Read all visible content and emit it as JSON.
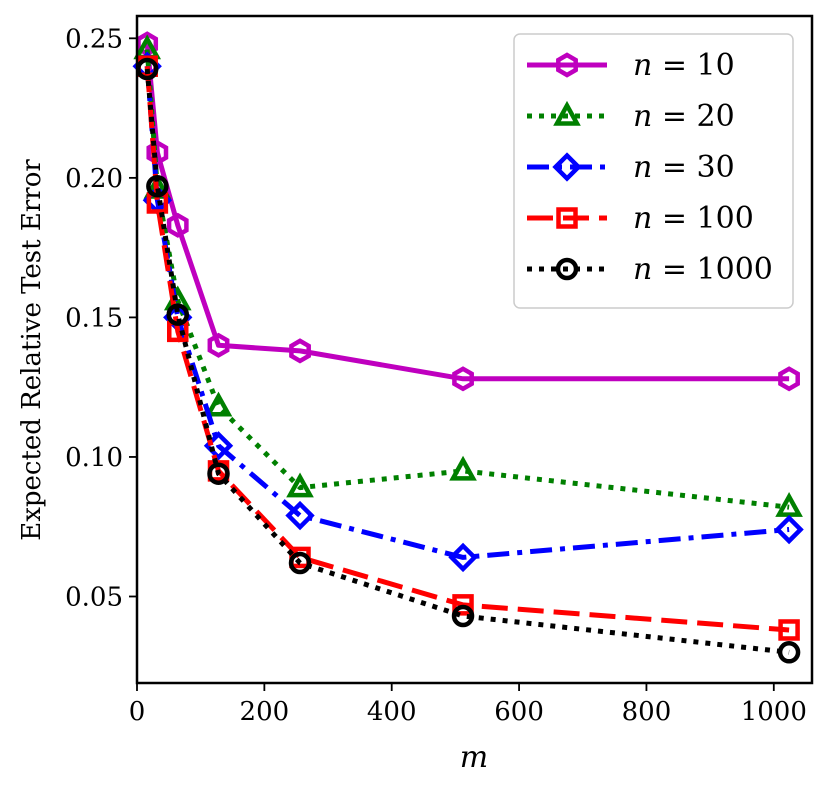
{
  "chart_data": {
    "type": "line",
    "title": "",
    "xlabel": "m",
    "ylabel": "Expected Relative Test Error",
    "xlim": [
      0,
      1060
    ],
    "ylim": [
      0.019,
      0.258
    ],
    "xticks": [
      0,
      200,
      400,
      600,
      800,
      1000
    ],
    "xtick_labels": [
      "0",
      "200",
      "400",
      "600",
      "800",
      "1000"
    ],
    "yticks": [
      0.05,
      0.1,
      0.15,
      0.2,
      0.25
    ],
    "ytick_labels": [
      "0.05",
      "0.10",
      "0.15",
      "0.20",
      "0.25"
    ],
    "grid": false,
    "legend_position": "top-right",
    "x": [
      16,
      32,
      64,
      128,
      256,
      512,
      1024
    ],
    "series": [
      {
        "name": "n = 10",
        "legend_var": "n",
        "legend_value": "10",
        "color": "#bf00bf",
        "style": "solid",
        "marker": "hexagon",
        "values": [
          0.248,
          0.209,
          0.183,
          0.14,
          0.138,
          0.128,
          0.128
        ]
      },
      {
        "name": "n = 20",
        "legend_var": "n",
        "legend_value": "20",
        "color": "#008000",
        "style": "dotted",
        "marker": "triangle",
        "values": [
          0.246,
          0.196,
          0.156,
          0.118,
          0.089,
          0.095,
          0.082
        ]
      },
      {
        "name": "n = 30",
        "legend_var": "n",
        "legend_value": "30",
        "color": "#0000ff",
        "style": "dashdot",
        "marker": "diamond",
        "values": [
          0.24,
          0.192,
          0.15,
          0.104,
          0.079,
          0.064,
          0.074
        ]
      },
      {
        "name": "n = 100",
        "legend_var": "n",
        "legend_value": "100",
        "color": "#ff0000",
        "style": "dashed",
        "marker": "square",
        "values": [
          0.24,
          0.191,
          0.145,
          0.095,
          0.064,
          0.047,
          0.038
        ]
      },
      {
        "name": "n = 1000",
        "legend_var": "n",
        "legend_value": "1000",
        "color": "#000000",
        "style": "dotted",
        "marker": "circle",
        "values": [
          0.239,
          0.197,
          0.151,
          0.094,
          0.062,
          0.043,
          0.03
        ]
      }
    ]
  }
}
